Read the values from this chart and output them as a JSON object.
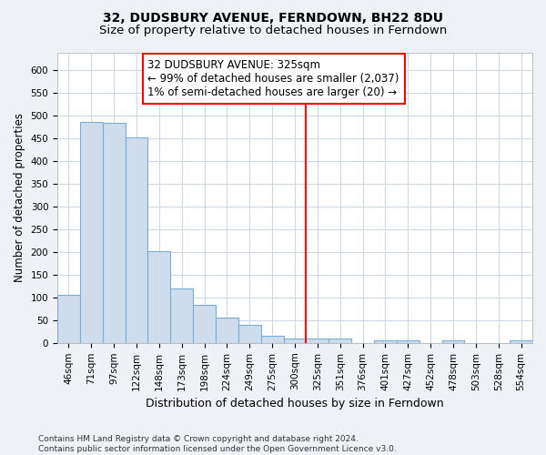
{
  "title": "32, DUDSBURY AVENUE, FERNDOWN, BH22 8DU",
  "subtitle": "Size of property relative to detached houses in Ferndown",
  "xlabel": "Distribution of detached houses by size in Ferndown",
  "ylabel": "Number of detached properties",
  "categories": [
    "46sqm",
    "71sqm",
    "97sqm",
    "122sqm",
    "148sqm",
    "173sqm",
    "198sqm",
    "224sqm",
    "249sqm",
    "275sqm",
    "300sqm",
    "325sqm",
    "351sqm",
    "376sqm",
    "401sqm",
    "427sqm",
    "452sqm",
    "478sqm",
    "503sqm",
    "528sqm",
    "554sqm"
  ],
  "values": [
    105,
    487,
    485,
    453,
    202,
    120,
    83,
    55,
    40,
    15,
    10,
    10,
    10,
    0,
    5,
    5,
    0,
    5,
    0,
    0,
    5
  ],
  "bar_color": "#cfdcec",
  "bar_edge_color": "#7aadd4",
  "vline_index": 11,
  "vline_color": "red",
  "annotation_line1": "32 DUDSBURY AVENUE: 325sqm",
  "annotation_line2": "← 99% of detached houses are smaller (2,037)",
  "annotation_line3": "1% of semi-detached houses are larger (20) →",
  "annotation_box_facecolor": "white",
  "annotation_box_edgecolor": "red",
  "ylim": [
    0,
    640
  ],
  "yticks": [
    0,
    50,
    100,
    150,
    200,
    250,
    300,
    350,
    400,
    450,
    500,
    550,
    600
  ],
  "plot_bg_color": "white",
  "fig_bg_color": "#eef2f7",
  "grid_color": "#d0d8e4",
  "footer": "Contains HM Land Registry data © Crown copyright and database right 2024.\nContains public sector information licensed under the Open Government Licence v3.0.",
  "title_fontsize": 10,
  "subtitle_fontsize": 9.5,
  "xlabel_fontsize": 9,
  "ylabel_fontsize": 8.5,
  "tick_fontsize": 7.5,
  "annotation_fontsize": 8.5,
  "footer_fontsize": 6.5
}
